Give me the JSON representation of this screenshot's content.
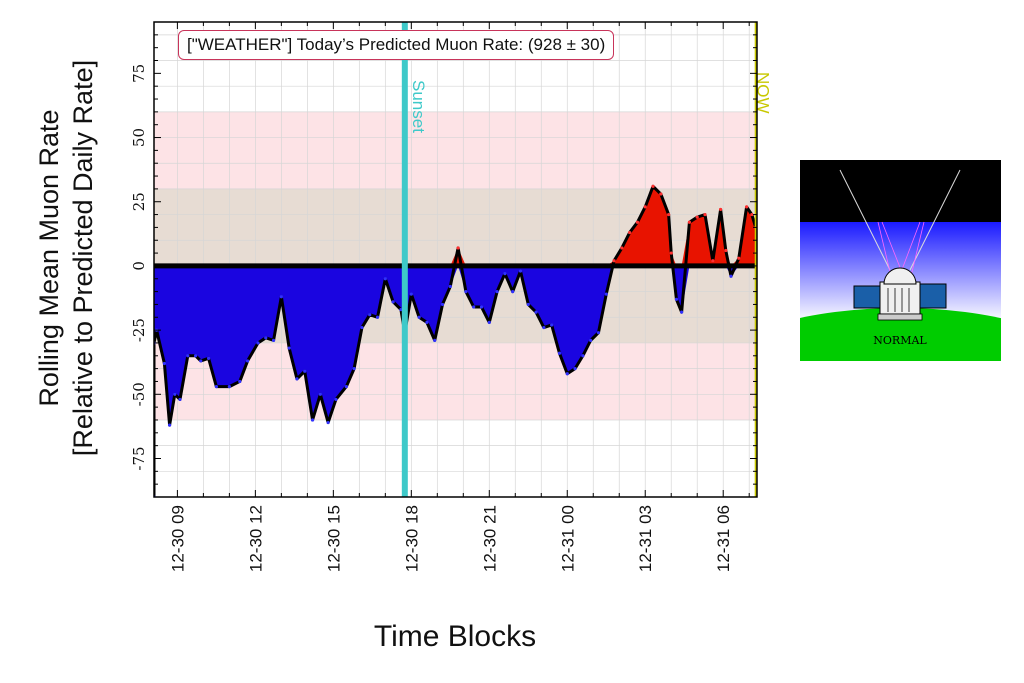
{
  "chart_data": {
    "type": "area",
    "title": "[\"WEATHER\"] Today’s Predicted Muon Rate: (928 ± 30)",
    "ylabel_line1": "Rolling Mean Muon Rate",
    "ylabel_line2": "[Relative to Predicted Daily Rate]",
    "xlabel": "Time Blocks",
    "x_unit": "hours since 12-30 00:00",
    "xlim": [
      8.1,
      31.3
    ],
    "ylim": [
      -90,
      95
    ],
    "yticks": [
      -75,
      -50,
      -25,
      0,
      25,
      50,
      75
    ],
    "xticks": [
      {
        "x": 9,
        "label": "12-30 09"
      },
      {
        "x": 12,
        "label": "12-30 12"
      },
      {
        "x": 15,
        "label": "12-30 15"
      },
      {
        "x": 18,
        "label": "12-30 18"
      },
      {
        "x": 21,
        "label": "12-30 21"
      },
      {
        "x": 24,
        "label": "12-31 00"
      },
      {
        "x": 27,
        "label": "12-31 03"
      },
      {
        "x": 30,
        "label": "12-31 06"
      }
    ],
    "bands": [
      {
        "from": -60,
        "to": 60,
        "color": "#fde3e6"
      },
      {
        "from": -30,
        "to": 30,
        "color": "#e7dcd3"
      }
    ],
    "markers": [
      {
        "x": 17.75,
        "label": "Sunset",
        "color": "#3ec9c9"
      },
      {
        "x": 31.25,
        "label": "NOW",
        "color": "#c8c800"
      }
    ],
    "fill_positive": "#e81300",
    "fill_negative": "#1a05e0",
    "points": [
      [
        8.1,
        -90
      ],
      [
        8.1,
        -30
      ],
      [
        8.2,
        -25
      ],
      [
        8.5,
        -38
      ],
      [
        8.7,
        -62
      ],
      [
        8.9,
        -50
      ],
      [
        9.1,
        -52
      ],
      [
        9.4,
        -35
      ],
      [
        9.7,
        -35
      ],
      [
        9.9,
        -37
      ],
      [
        10.2,
        -36
      ],
      [
        10.5,
        -47
      ],
      [
        11.0,
        -47
      ],
      [
        11.4,
        -45
      ],
      [
        11.7,
        -37
      ],
      [
        12.1,
        -30
      ],
      [
        12.4,
        -28
      ],
      [
        12.7,
        -29
      ],
      [
        13.0,
        -12
      ],
      [
        13.3,
        -32
      ],
      [
        13.6,
        -44
      ],
      [
        13.9,
        -41
      ],
      [
        14.2,
        -60
      ],
      [
        14.5,
        -50
      ],
      [
        14.8,
        -61
      ],
      [
        15.1,
        -52
      ],
      [
        15.5,
        -47
      ],
      [
        15.8,
        -40
      ],
      [
        16.1,
        -24
      ],
      [
        16.4,
        -19
      ],
      [
        16.7,
        -20
      ],
      [
        17.0,
        -5
      ],
      [
        17.3,
        -14
      ],
      [
        17.6,
        -17
      ],
      [
        17.75,
        -26
      ],
      [
        18.0,
        -11
      ],
      [
        18.3,
        -20
      ],
      [
        18.6,
        -22
      ],
      [
        18.9,
        -29
      ],
      [
        19.2,
        -15
      ],
      [
        19.5,
        -8
      ],
      [
        19.8,
        7
      ],
      [
        20.1,
        -10
      ],
      [
        20.4,
        -16
      ],
      [
        20.7,
        -16
      ],
      [
        21.0,
        -22
      ],
      [
        21.3,
        -10
      ],
      [
        21.6,
        -3
      ],
      [
        21.9,
        -10
      ],
      [
        22.2,
        -2
      ],
      [
        22.5,
        -15
      ],
      [
        22.8,
        -18
      ],
      [
        23.1,
        -24
      ],
      [
        23.4,
        -23
      ],
      [
        23.7,
        -34
      ],
      [
        24.0,
        -42
      ],
      [
        24.3,
        -40
      ],
      [
        24.6,
        -35
      ],
      [
        24.9,
        -29
      ],
      [
        25.2,
        -26
      ],
      [
        25.5,
        -11
      ],
      [
        25.8,
        2
      ],
      [
        26.1,
        7
      ],
      [
        26.4,
        13
      ],
      [
        26.7,
        17
      ],
      [
        27.0,
        23
      ],
      [
        27.3,
        31
      ],
      [
        27.6,
        28
      ],
      [
        27.9,
        20
      ],
      [
        28.0,
        5
      ],
      [
        28.2,
        -13
      ],
      [
        28.4,
        -18
      ],
      [
        28.7,
        17
      ],
      [
        29.0,
        19
      ],
      [
        29.3,
        20
      ],
      [
        29.6,
        2
      ],
      [
        29.9,
        22
      ],
      [
        30.1,
        6
      ],
      [
        30.3,
        -4
      ],
      [
        30.6,
        3
      ],
      [
        30.9,
        23
      ],
      [
        31.1,
        20
      ],
      [
        31.25,
        15
      ]
    ]
  },
  "status_image": {
    "label": "NORMAL",
    "icon": "observatory-normal-icon",
    "colors": {
      "sky_top": "#000000",
      "sky_blue": "#1a1aff",
      "ground": "#00cc00"
    }
  }
}
